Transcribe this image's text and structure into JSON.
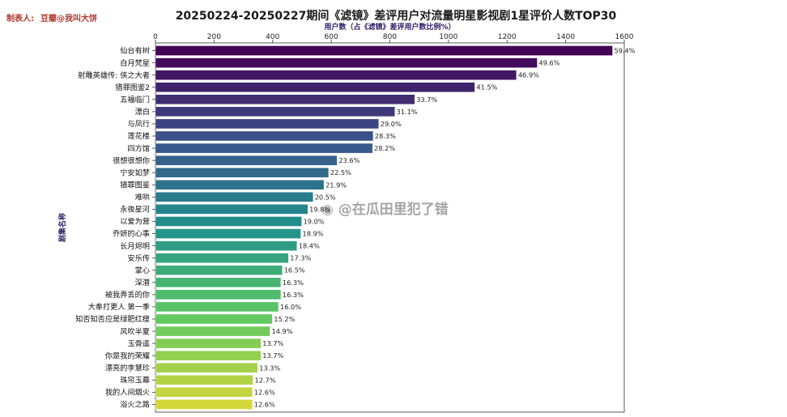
{
  "maker": {
    "label": "制表人:",
    "value": "豆瓣@我叫大饼"
  },
  "watermark": "@在瓜田里犯了错",
  "chart_data": {
    "type": "bar",
    "orientation": "horizontal",
    "title": "20250224-20250227期间《滤镜》差评用户对流量明星影视剧1星评价人数TOP30",
    "xlabel": "用户数（占《滤镜》差评用户数比例%）",
    "ylabel": "剧集名称",
    "xlim": [
      0,
      1600
    ],
    "xticks": [
      "0",
      "200",
      "400",
      "600",
      "800",
      "1000",
      "1200",
      "1400",
      "1600"
    ],
    "categories": [
      "仙台有树",
      "白月梵星",
      "射雕英雄传: 侠之大者",
      "猎罪图鉴2",
      "五福临门",
      "漂白",
      "与凤行",
      "莲花楼",
      "四方馆",
      "很想很想你",
      "宁安如梦",
      "猎罪图鉴",
      "难哄",
      "永夜星河",
      "以爱为营",
      "乔妍的心事",
      "长月烬明",
      "安乐传",
      "掌心",
      "深潜",
      "被我弄丢的你",
      "大奉打更人 第一季",
      "知否知否应是绿肥红瘦",
      "风吹半夏",
      "玉骨遥",
      "你是我的荣耀",
      "漂亮的李慧珍",
      "珠帘玉幕",
      "我的人间烟火",
      "浴火之路"
    ],
    "values": [
      1560,
      1303,
      1232,
      1090,
      885,
      817,
      762,
      743,
      741,
      620,
      591,
      575,
      538,
      520,
      499,
      496,
      483,
      454,
      433,
      428,
      428,
      420,
      399,
      391,
      360,
      360,
      349,
      333,
      331,
      331
    ],
    "labels": [
      "59.4%",
      "49.6%",
      "46.9%",
      "41.5%",
      "33.7%",
      "31.1%",
      "29.0%",
      "28.3%",
      "28.2%",
      "23.6%",
      "22.5%",
      "21.9%",
      "20.5%",
      "19.8%",
      "19.0%",
      "18.9%",
      "18.4%",
      "17.3%",
      "16.5%",
      "16.3%",
      "16.3%",
      "16.0%",
      "15.2%",
      "14.9%",
      "13.7%",
      "13.7%",
      "13.3%",
      "12.7%",
      "12.6%",
      "12.6%"
    ],
    "colormap": "viridis",
    "colors": {
      "start": "#440154",
      "mid": "#21918c",
      "end": "#d4d63a"
    },
    "grid": false,
    "x_axis_position": "top"
  }
}
